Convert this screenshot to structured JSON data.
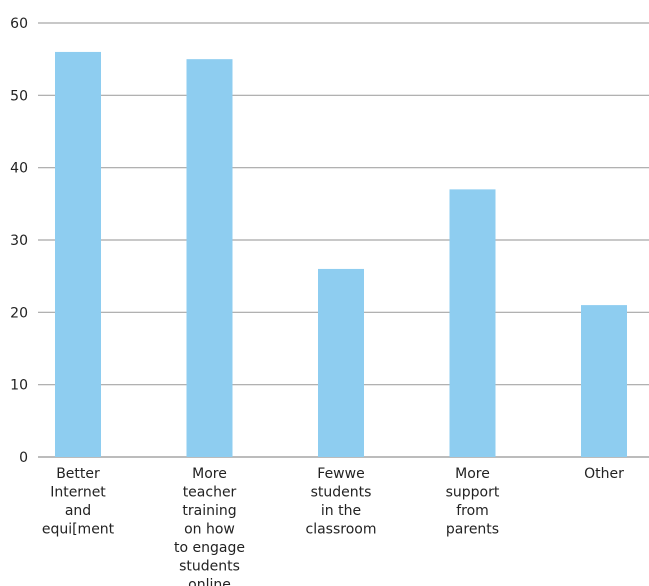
{
  "chart_data": {
    "type": "bar",
    "title": "",
    "xlabel": "",
    "ylabel": "",
    "categories": [
      [
        "Better",
        "Internet",
        "and",
        "equi[ment"
      ],
      [
        "More",
        "teacher",
        "training",
        "on how",
        "to engage",
        "students",
        "online"
      ],
      [
        "Fewwe",
        "students",
        "in the",
        "classroom"
      ],
      [
        "More",
        "support",
        "from",
        "parents"
      ],
      [
        "Other"
      ]
    ],
    "values": [
      56,
      55,
      26,
      37,
      21
    ],
    "ylim": [
      0,
      60
    ],
    "yticks": [
      0,
      10,
      20,
      30,
      40,
      50,
      60
    ],
    "grid": true,
    "legend": "none",
    "colors": {
      "bar": "#8ecdf0",
      "grid": "#a6a6a6",
      "text": "#222222"
    }
  }
}
